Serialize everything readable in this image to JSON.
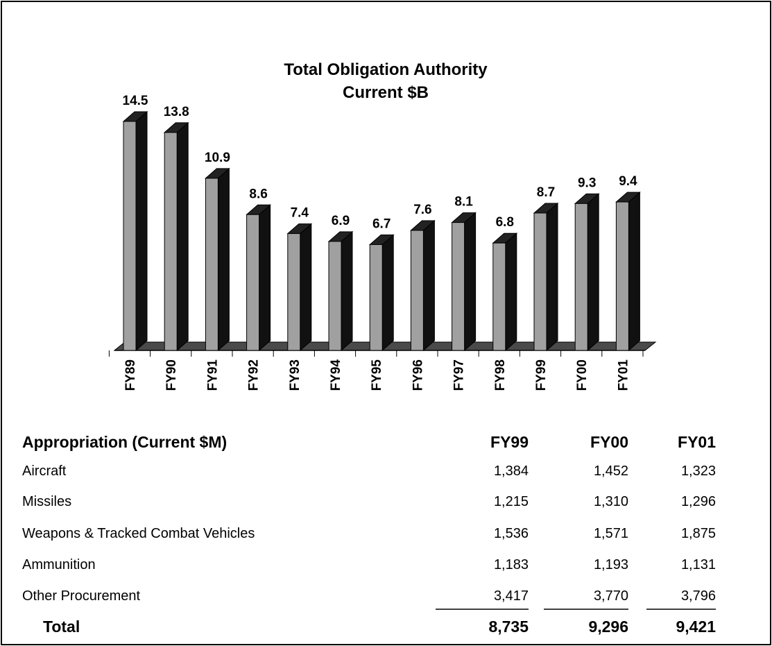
{
  "chart_data": {
    "type": "bar",
    "title": [
      "Total Obligation Authority",
      "Current $B"
    ],
    "categories": [
      "FY89",
      "FY90",
      "FY91",
      "FY92",
      "FY93",
      "FY94",
      "FY95",
      "FY96",
      "FY97",
      "FY98",
      "FY99",
      "FY00",
      "FY01"
    ],
    "values": [
      14.5,
      13.8,
      10.9,
      8.6,
      7.4,
      6.9,
      6.7,
      7.6,
      8.1,
      6.8,
      8.7,
      9.3,
      9.4
    ],
    "color": "#a0a0a0"
  },
  "table": {
    "header": [
      "Appropriation (Current $M)",
      "FY99",
      "FY00",
      "FY01"
    ],
    "rows": [
      [
        "Aircraft",
        "1,384",
        "1,452",
        "1,323"
      ],
      [
        "Missiles",
        "1,215",
        "1,310",
        "1,296"
      ],
      [
        "Weapons & Tracked Combat Vehicles",
        "1,536",
        "1,571",
        "1,875"
      ],
      [
        "Ammunition",
        "1,183",
        "1,193",
        "1,131"
      ],
      [
        "Other Procurement",
        "3,417",
        "3,770",
        "3,796"
      ]
    ],
    "total": [
      "Total",
      "8,735",
      "9,296",
      "9,421"
    ]
  }
}
